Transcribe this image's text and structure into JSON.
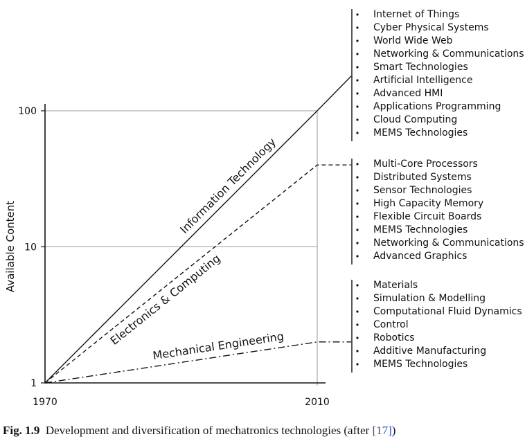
{
  "chart_data": {
    "type": "line",
    "x_ticks": [
      "1970",
      "2010"
    ],
    "y_ticks": [
      "1",
      "10",
      "100"
    ],
    "ylabel": "Available Content",
    "y_scale": "log",
    "xlim": [
      1970,
      2010
    ],
    "ylim": [
      1,
      100
    ],
    "grid": true,
    "series": [
      {
        "name": "Information Technology",
        "style": "solid",
        "points": [
          [
            1970,
            1
          ],
          [
            2010,
            100
          ],
          [
            2015,
            180
          ]
        ]
      },
      {
        "name": "Electronics & Computing",
        "style": "dashed",
        "points": [
          [
            1970,
            1
          ],
          [
            2010,
            40
          ],
          [
            2015,
            40
          ]
        ]
      },
      {
        "name": "Mechanical Engineering",
        "style": "dashdot",
        "points": [
          [
            1970,
            1
          ],
          [
            2010,
            2
          ],
          [
            2015,
            2
          ]
        ]
      }
    ],
    "groups": [
      {
        "items": [
          "Internet of Things",
          "Cyber Physical Systems",
          "World Wide Web",
          "Networking & Communications",
          "Smart Technologies",
          "Artificial Intelligence",
          "Advanced HMI",
          "Applications Programming",
          "Cloud Computing",
          "MEMS Technologies"
        ]
      },
      {
        "items": [
          "Multi-Core Processors",
          "Distributed Systems",
          "Sensor Technologies",
          "High Capacity Memory",
          "Flexible Circuit Boards",
          "MEMS Technologies",
          "Networking & Communications",
          "Advanced Graphics"
        ]
      },
      {
        "items": [
          "Materials",
          "Simulation & Modelling",
          "Computational Fluid Dynamics",
          "Control",
          "Robotics",
          "Additive Manufacturing",
          "MEMS Technologies"
        ]
      }
    ]
  },
  "caption": {
    "figure": "Fig. 1.9",
    "text": "Development and diversification of mechatronics technologies (after ",
    "ref": "[17]",
    "close": ")"
  }
}
